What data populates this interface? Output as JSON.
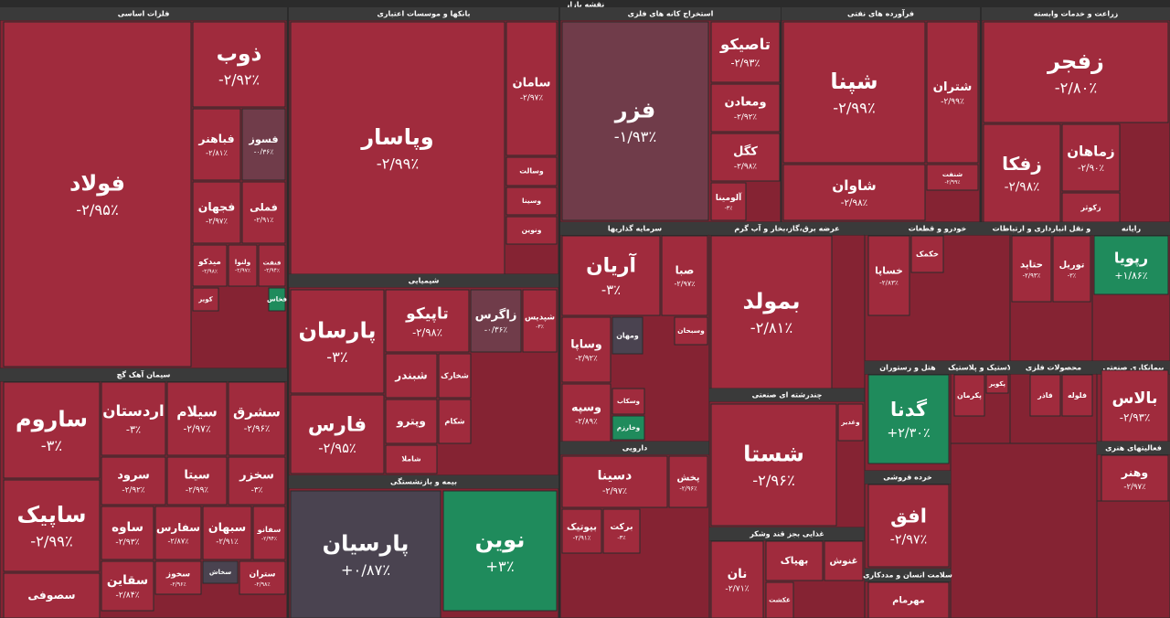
{
  "title": "نقشه بازار",
  "sectors": [
    {
      "name": "فلزات اساسی",
      "tiles": [
        {
          "name": "فولاد",
          "change": "-۲/۹۵٪"
        },
        {
          "name": "ذوب",
          "change": "-۲/۹۲٪"
        },
        {
          "name": "فسوز",
          "change": "-۰/۳۶٪"
        },
        {
          "name": "فباهنر",
          "change": "-۲/۸۱٪"
        },
        {
          "name": "فملی",
          "change": "-۲/۹۱٪"
        },
        {
          "name": "فجهان",
          "change": "-۲/۹۷٪"
        },
        {
          "name": "فنفت",
          "change": "-۲/۹۴٪"
        },
        {
          "name": "ولنوا",
          "change": "-۲/۹۷٪"
        },
        {
          "name": "میدکو",
          "change": "-۲/۹۸٪"
        },
        {
          "name": "فخاس"
        },
        {
          "name": "کویر"
        }
      ]
    },
    {
      "name": "سیمان آهک گچ",
      "tiles": [
        {
          "name": "ساروم",
          "change": "-۳٪"
        },
        {
          "name": "اردستان",
          "change": "-۳٪"
        },
        {
          "name": "سیلام",
          "change": "-۲/۹۷٪"
        },
        {
          "name": "سشرق",
          "change": "-۲/۹۶٪"
        },
        {
          "name": "سرود",
          "change": "-۲/۹۲٪"
        },
        {
          "name": "سیتا",
          "change": "-۲/۹۹٪"
        },
        {
          "name": "سخزر",
          "change": "-۳٪"
        },
        {
          "name": "ساپیک",
          "change": "-۲/۹۹٪"
        },
        {
          "name": "سصوفی"
        },
        {
          "name": "ساوه",
          "change": "-۲/۹۳٪"
        },
        {
          "name": "سفارس",
          "change": "-۲/۸۷٪"
        },
        {
          "name": "سبهان",
          "change": "-۲/۹۱٪"
        },
        {
          "name": "سفانو",
          "change": "-۲/۹۴٪"
        },
        {
          "name": "سقاین",
          "change": "-۲/۸۴٪"
        },
        {
          "name": "سخوز",
          "change": "-۲/۹۶٪"
        },
        {
          "name": "سخاش"
        },
        {
          "name": "ستران",
          "change": "-۲/۹۸٪"
        }
      ]
    },
    {
      "name": "بانکها و موسسات اعتباری",
      "tiles": [
        {
          "name": "وپاسار",
          "change": "-۲/۹۹٪"
        },
        {
          "name": "سامان",
          "change": "-۲/۹۷٪"
        },
        {
          "name": "وسالت"
        },
        {
          "name": "وسینا"
        },
        {
          "name": "ونوین"
        }
      ]
    },
    {
      "name": "شیمیایی",
      "tiles": [
        {
          "name": "پارسان",
          "change": "-۳٪"
        },
        {
          "name": "تاپیکو",
          "change": "-۲/۹۸٪"
        },
        {
          "name": "زاگرس",
          "change": "-۰/۳۶٪"
        },
        {
          "name": "شپدیس",
          "change": "-۳٪"
        },
        {
          "name": "فارس",
          "change": "-۲/۹۵٪"
        },
        {
          "name": "شبندر"
        },
        {
          "name": "شخارک"
        },
        {
          "name": "وپترو"
        },
        {
          "name": "شکام"
        },
        {
          "name": "شاملا"
        }
      ]
    },
    {
      "name": "بیمه و بازنشستگی",
      "tiles": [
        {
          "name": "پارسیان",
          "change": "+۰/۸۷٪"
        },
        {
          "name": "نوین",
          "change": "+۳٪"
        }
      ]
    },
    {
      "name": "استخراج کانه های فلزی",
      "tiles": [
        {
          "name": "فزر",
          "change": "-۱/۹۳٪"
        },
        {
          "name": "تاصیکو",
          "change": "-۲/۹۳٪"
        },
        {
          "name": "ومعادن",
          "change": "-۲/۹۲٪"
        },
        {
          "name": "کگل",
          "change": "-۲/۹۸٪"
        },
        {
          "name": "آلومینا",
          "change": "-۳٪"
        }
      ]
    },
    {
      "name": "فرآورده های نفتی",
      "tiles": [
        {
          "name": "شپنا",
          "change": "-۲/۹۹٪"
        },
        {
          "name": "شتران",
          "change": "-۲/۹۹٪"
        },
        {
          "name": "شاوان",
          "change": "-۲/۹۸٪"
        },
        {
          "name": "شنفت",
          "change": "-۲/۹۹٪"
        }
      ]
    },
    {
      "name": "زراعت و خدمات وابسته",
      "tiles": [
        {
          "name": "زفجر",
          "change": "-۲/۸۰٪"
        },
        {
          "name": "زفکا",
          "change": "-۲/۹۸٪"
        },
        {
          "name": "زماهان",
          "change": "-۲/۹۰٪"
        },
        {
          "name": "زکوثر"
        }
      ]
    },
    {
      "name": "سرمایه گذاریها",
      "tiles": [
        {
          "name": "آریان",
          "change": "-۳٪"
        },
        {
          "name": "صبا",
          "change": "-۲/۹۷٪"
        },
        {
          "name": "وساپا",
          "change": "-۲/۹۲٪"
        },
        {
          "name": "ومهان"
        },
        {
          "name": "وسپه",
          "change": "-۲/۸۹٪"
        },
        {
          "name": "وخارزم"
        },
        {
          "name": "وسبحان"
        },
        {
          "name": "وسکاب"
        }
      ]
    },
    {
      "name": "دارویی",
      "tiles": [
        {
          "name": "دسینا",
          "change": "-۲/۹۷٪"
        },
        {
          "name": "پخش",
          "change": "-۲/۹۶٪"
        },
        {
          "name": "برکت",
          "change": "-۳٪"
        },
        {
          "name": "بیوتیک",
          "change": "-۲/۹۱٪"
        }
      ]
    },
    {
      "name": "عرضه برق،گاز،بخار و آب گرم",
      "tiles": [
        {
          "name": "بمولد",
          "change": "-۲/۸۱٪"
        }
      ]
    },
    {
      "name": "چندرشته ای صنعتی",
      "tiles": [
        {
          "name": "شستا",
          "change": "-۲/۹۶٪"
        },
        {
          "name": "وغدیر"
        }
      ]
    },
    {
      "name": "غذایی بجز قند وشکر",
      "tiles": [
        {
          "name": "نان",
          "change": "-۲/۷۱٪"
        },
        {
          "name": "بهپاک"
        },
        {
          "name": "غنوش"
        },
        {
          "name": "غکشت"
        }
      ]
    },
    {
      "name": "خودرو و قطعات",
      "tiles": [
        {
          "name": "خساپا",
          "change": "-۲/۸۳٪"
        },
        {
          "name": "خکمک"
        }
      ]
    },
    {
      "name": "هتل و رستوران",
      "tiles": [
        {
          "name": "گدنا",
          "change": "+۲/۳۰٪"
        }
      ]
    },
    {
      "name": "خرده فروشی",
      "tiles": [
        {
          "name": "افق",
          "change": "-۲/۹۷٪"
        }
      ]
    },
    {
      "name": "سلامت انسان و مددکاری",
      "tiles": [
        {
          "name": "مهرمام"
        }
      ]
    },
    {
      "name": "حمل و نقل انبارداری و ارتباطات",
      "tiles": [
        {
          "name": "حتاید",
          "change": "-۲/۹۳٪"
        },
        {
          "name": "توریل",
          "change": "-۳٪"
        }
      ]
    },
    {
      "name": "رایانه",
      "tiles": [
        {
          "name": "رپویا",
          "change": "+۱/۸۶٪"
        }
      ]
    },
    {
      "name": "لاستیک و پلاستیک",
      "tiles": [
        {
          "name": "پکرمان"
        },
        {
          "name": "پکویر"
        }
      ]
    },
    {
      "name": "محصولات فلزی",
      "tiles": [
        {
          "name": "فاذر"
        },
        {
          "name": "فلوله"
        }
      ]
    },
    {
      "name": "پیمانکاری صنعتی",
      "tiles": [
        {
          "name": "بالاس",
          "change": "-۲/۹۳٪"
        }
      ]
    },
    {
      "name": "فعالیتهای هنری",
      "tiles": [
        {
          "name": "وهنر",
          "change": "-۲/۹۷٪"
        }
      ]
    }
  ]
}
